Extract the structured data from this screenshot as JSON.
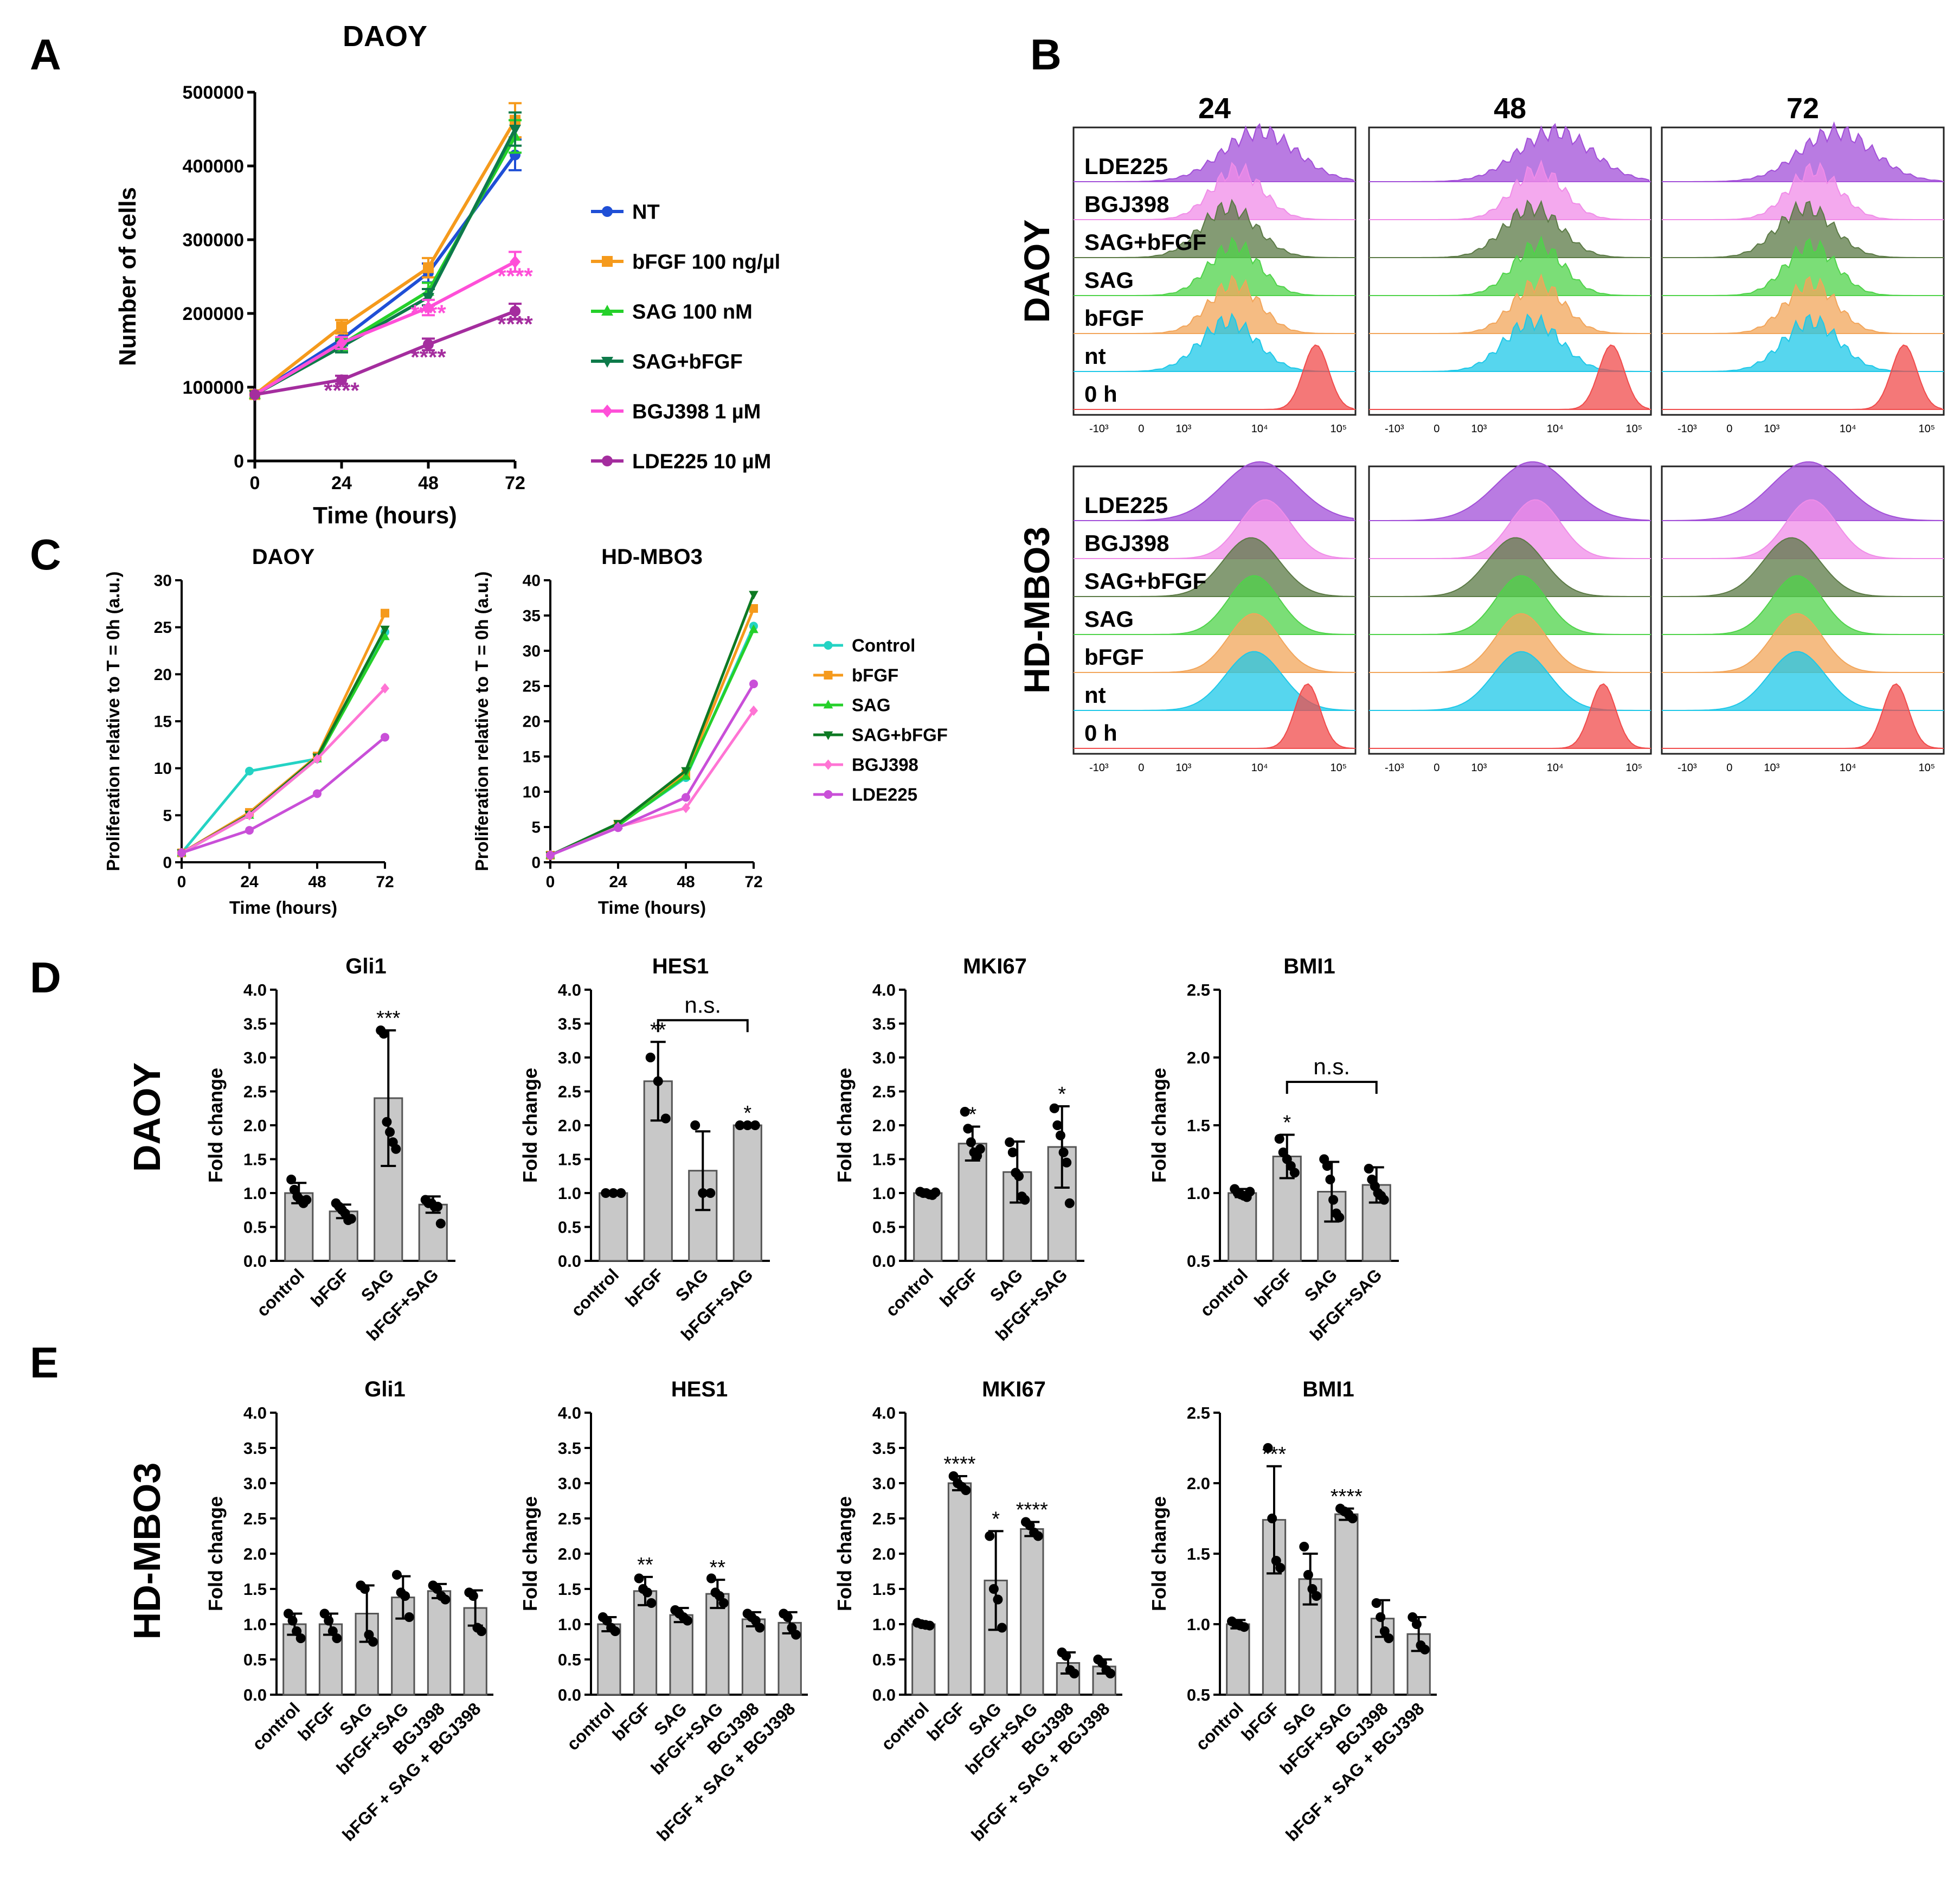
{
  "figure_labels": {
    "A": "A",
    "B": "B",
    "C": "C",
    "D": "D",
    "E": "E"
  },
  "chart_data": [
    {
      "id": "A",
      "type": "line",
      "title": "DAOY",
      "xlabel": "Time (hours)",
      "ylabel": "Number of cells",
      "x": [
        0,
        24,
        48,
        72
      ],
      "xticks": [
        "0",
        "24",
        "48",
        "72"
      ],
      "ylim": [
        0,
        500000
      ],
      "yticks": [
        "0",
        "100000",
        "200000",
        "300000",
        "400000",
        "500000"
      ],
      "series": [
        {
          "name": "NT",
          "color": "#1f4fd6",
          "marker": "circle",
          "values": [
            90000,
            165000,
            255000,
            415000
          ]
        },
        {
          "name": "bFGF 100 ng/µl",
          "color": "#f59a1c",
          "marker": "square",
          "values": [
            90000,
            182000,
            262000,
            462000
          ]
        },
        {
          "name": "SAG 100 nM",
          "color": "#25d02a",
          "marker": "triangle",
          "values": [
            90000,
            158000,
            230000,
            440000
          ]
        },
        {
          "name": "SAG+bFGF",
          "color": "#0d7a4a",
          "marker": "triangle-down",
          "values": [
            90000,
            155000,
            222000,
            450000
          ]
        },
        {
          "name": "BGJ398 1 µM",
          "color": "#ff4fd8",
          "marker": "diamond",
          "values": [
            90000,
            160000,
            208000,
            270000
          ]
        },
        {
          "name": "LDE225 10 µM",
          "color": "#a42d9e",
          "marker": "circle",
          "values": [
            90000,
            110000,
            158000,
            203000
          ]
        }
      ],
      "annotations": [
        {
          "text": "****",
          "x": 24,
          "y": 85000,
          "color": "#a42d9e"
        },
        {
          "text": "****",
          "x": 48,
          "y": 190000,
          "color": "#ff4fd8"
        },
        {
          "text": "****",
          "x": 48,
          "y": 130000,
          "color": "#a42d9e"
        },
        {
          "text": "****",
          "x": 72,
          "y": 240000,
          "color": "#ff4fd8"
        },
        {
          "text": "****",
          "x": 72,
          "y": 175000,
          "color": "#a42d9e"
        }
      ]
    },
    {
      "id": "B",
      "type": "histogram-stack",
      "columns": [
        "24",
        "48",
        "72"
      ],
      "row_groups": [
        {
          "name": "DAOY",
          "labels": [
            "LDE225",
            "BGJ398",
            "SAG+bFGF",
            "SAG",
            "bFGF",
            "nt",
            "0 h"
          ]
        },
        {
          "name": "HD-MBO3",
          "labels": [
            "LDE225",
            "BGJ398",
            "SAG+bFGF",
            "SAG",
            "bFGF",
            "nt",
            "0 h"
          ]
        }
      ],
      "layer_colors": [
        "#a24fd8",
        "#f08ce8",
        "#5b7a45",
        "#4fd34a",
        "#f2a55a",
        "#1ec8e8",
        "#f04b4b"
      ],
      "xtick_labels": [
        "-10³",
        "0",
        "10³",
        "10⁴",
        "10⁵"
      ]
    },
    {
      "id": "C1",
      "type": "line",
      "title": "DAOY",
      "xlabel": "Time (hours)",
      "ylabel": "Proliferation relative to T = 0h (a.u.)",
      "x": [
        0,
        24,
        48,
        72
      ],
      "xticks": [
        "0",
        "24",
        "48",
        "72"
      ],
      "ylim": [
        0,
        30
      ],
      "yticks": [
        "0",
        "5",
        "10",
        "15",
        "20",
        "25",
        "30"
      ],
      "series": [
        {
          "name": "Control",
          "color": "#24d3c4",
          "marker": "circle",
          "values": [
            1,
            9.7,
            11,
            24.5
          ]
        },
        {
          "name": "bFGF",
          "color": "#f59a1c",
          "marker": "square",
          "values": [
            1,
            5.3,
            11.3,
            26.5
          ]
        },
        {
          "name": "SAG",
          "color": "#25d02a",
          "marker": "triangle",
          "values": [
            1,
            5,
            11,
            24
          ]
        },
        {
          "name": "SAG+bFGF",
          "color": "#0d7a23",
          "marker": "triangle-down",
          "values": [
            1,
            5.1,
            11.2,
            24.8
          ]
        },
        {
          "name": "BGJ398",
          "color": "#ff74d4",
          "marker": "diamond",
          "values": [
            1,
            5,
            11,
            18.5
          ]
        },
        {
          "name": "LDE225",
          "color": "#c94fd8",
          "marker": "circle",
          "values": [
            1,
            3.4,
            7.3,
            13.3
          ]
        }
      ]
    },
    {
      "id": "C2",
      "type": "line",
      "title": "HD-MBO3",
      "xlabel": "Time (hours)",
      "ylabel": "Proliferation relative to T = 0h (a.u.)",
      "x": [
        0,
        24,
        48,
        72
      ],
      "xticks": [
        "0",
        "24",
        "48",
        "72"
      ],
      "ylim": [
        0,
        40
      ],
      "yticks": [
        "0",
        "5",
        "10",
        "15",
        "20",
        "25",
        "30",
        "35",
        "40"
      ],
      "series": [
        {
          "name": "Control",
          "color": "#24d3c4",
          "marker": "circle",
          "values": [
            1,
            5.3,
            12,
            33.5
          ]
        },
        {
          "name": "bFGF",
          "color": "#f59a1c",
          "marker": "square",
          "values": [
            1,
            5.4,
            12.5,
            36
          ]
        },
        {
          "name": "SAG",
          "color": "#25d02a",
          "marker": "triangle",
          "values": [
            1,
            5.2,
            12.2,
            33
          ]
        },
        {
          "name": "SAG+bFGF",
          "color": "#0d7a23",
          "marker": "triangle-down",
          "values": [
            1,
            5.5,
            13,
            38
          ]
        },
        {
          "name": "BGJ398",
          "color": "#ff74d4",
          "marker": "diamond",
          "values": [
            1,
            5,
            7.7,
            21.5
          ]
        },
        {
          "name": "LDE225",
          "color": "#c94fd8",
          "marker": "circle",
          "values": [
            1,
            4.9,
            9.2,
            25.3
          ]
        }
      ]
    },
    {
      "id": "D1",
      "type": "bar",
      "title": "Gli1",
      "ylabel": "Fold change",
      "categories": [
        "control",
        "bFGF",
        "SAG",
        "bFGF+SAG"
      ],
      "values": [
        1.0,
        0.73,
        2.4,
        0.83
      ],
      "errors": [
        0.15,
        0.1,
        1.0,
        0.12
      ],
      "ylim": [
        0,
        4
      ],
      "yticks": [
        "0.0",
        "0.5",
        "1.0",
        "1.5",
        "2.0",
        "2.5",
        "3.0",
        "3.5",
        "4.0"
      ],
      "points": [
        [
          1.2,
          1.05,
          0.95,
          0.9,
          0.85,
          0.9
        ],
        [
          0.85,
          0.8,
          0.75,
          0.7,
          0.6,
          0.62
        ],
        [
          3.4,
          3.35,
          2.05,
          1.9,
          1.75,
          1.65
        ],
        [
          0.9,
          0.85,
          0.85,
          0.8,
          0.8,
          0.55
        ]
      ],
      "sig": [
        null,
        null,
        "***",
        null
      ],
      "bracket": null
    },
    {
      "id": "D2",
      "type": "bar",
      "title": "HES1",
      "ylabel": "Fold change",
      "categories": [
        "control",
        "bFGF",
        "SAG",
        "bFGF+SAG"
      ],
      "values": [
        1.0,
        2.65,
        1.33,
        2.0
      ],
      "errors": [
        0.0,
        0.58,
        0.58,
        0.0
      ],
      "ylim": [
        0,
        4
      ],
      "yticks": [
        "0.0",
        "0.5",
        "1.0",
        "1.5",
        "2.0",
        "2.5",
        "3.0",
        "3.5",
        "4.0"
      ],
      "points": [
        [
          1.0,
          1.0,
          1.0
        ],
        [
          3.0,
          2.65,
          2.1
        ],
        [
          2.0,
          1.0,
          1.0
        ],
        [
          2.0,
          2.0,
          2.0
        ]
      ],
      "sig": [
        null,
        "**",
        null,
        "*"
      ],
      "bracket": {
        "from": 1,
        "to": 3,
        "label": "n.s.",
        "y": 3.55
      }
    },
    {
      "id": "D3",
      "type": "bar",
      "title": "MKI67",
      "ylabel": "Fold change",
      "categories": [
        "control",
        "bFGF",
        "SAG",
        "bFGF+SAG"
      ],
      "values": [
        1.0,
        1.73,
        1.31,
        1.68
      ],
      "errors": [
        0.03,
        0.25,
        0.45,
        0.6
      ],
      "ylim": [
        0,
        4
      ],
      "yticks": [
        "0.0",
        "0.5",
        "1.0",
        "1.5",
        "2.0",
        "2.5",
        "3.0",
        "3.5",
        "4.0"
      ],
      "points": [
        [
          1.02,
          1.0,
          1.0,
          0.98,
          0.97,
          1.01
        ],
        [
          2.2,
          1.95,
          1.75,
          1.6,
          1.55,
          1.65
        ],
        [
          1.75,
          1.6,
          1.3,
          1.25,
          0.95,
          0.9
        ],
        [
          2.25,
          2.0,
          1.85,
          1.6,
          1.45,
          0.85
        ]
      ],
      "sig": [
        null,
        "*",
        null,
        "*"
      ],
      "bracket": null
    },
    {
      "id": "D4",
      "type": "bar",
      "title": "BMI1",
      "ylabel": "Fold change",
      "categories": [
        "control",
        "bFGF",
        "SAG",
        "bFGF+SAG"
      ],
      "values": [
        1.0,
        1.27,
        1.01,
        1.06
      ],
      "errors": [
        0.03,
        0.16,
        0.22,
        0.13
      ],
      "ylim": [
        0.5,
        2.5
      ],
      "yticks": [
        "0.5",
        "1.0",
        "1.5",
        "2.0",
        "2.5"
      ],
      "points": [
        [
          1.03,
          1.0,
          0.99,
          0.98,
          0.97,
          1.01
        ],
        [
          1.4,
          1.3,
          1.25,
          1.2,
          1.15
        ],
        [
          1.25,
          1.2,
          1.1,
          0.95,
          0.85,
          0.82
        ],
        [
          1.18,
          1.1,
          1.05,
          1.0,
          0.98,
          0.95
        ]
      ],
      "sig": [
        null,
        "*",
        null,
        null
      ],
      "bracket": {
        "from": 1,
        "to": 3,
        "label": "n.s.",
        "y": 1.82
      }
    },
    {
      "id": "E1",
      "type": "bar",
      "title": "Gli1",
      "ylabel": "Fold change",
      "categories": [
        "control",
        "bFGF",
        "SAG",
        "bFGF+SAG",
        "BGJ398",
        "bFGF + SAG + BGJ398"
      ],
      "values": [
        1.0,
        1.0,
        1.15,
        1.38,
        1.47,
        1.23
      ],
      "errors": [
        0.15,
        0.15,
        0.4,
        0.3,
        0.1,
        0.25
      ],
      "ylim": [
        0,
        4
      ],
      "yticks": [
        "0.0",
        "0.5",
        "1.0",
        "1.5",
        "2.0",
        "2.5",
        "3.0",
        "3.5",
        "4.0"
      ],
      "points": [
        [
          1.15,
          1.05,
          0.9,
          0.8
        ],
        [
          1.15,
          1.05,
          0.9,
          0.8
        ],
        [
          1.55,
          1.5,
          0.85,
          0.75
        ],
        [
          1.7,
          1.45,
          1.4,
          1.1
        ],
        [
          1.55,
          1.5,
          1.4,
          1.35
        ],
        [
          1.45,
          1.4,
          0.95,
          0.9
        ]
      ],
      "sig": [
        null,
        null,
        null,
        null,
        null,
        null
      ],
      "bracket": null
    },
    {
      "id": "E2",
      "type": "bar",
      "title": "HES1",
      "ylabel": "Fold change",
      "categories": [
        "control",
        "bFGF",
        "SAG",
        "bFGF+SAG",
        "BGJ398",
        "bFGF + SAG + BGJ398"
      ],
      "values": [
        1.0,
        1.47,
        1.13,
        1.43,
        1.07,
        1.02
      ],
      "errors": [
        0.1,
        0.2,
        0.1,
        0.2,
        0.1,
        0.15
      ],
      "ylim": [
        0,
        4
      ],
      "yticks": [
        "0.0",
        "0.5",
        "1.0",
        "1.5",
        "2.0",
        "2.5",
        "3.0",
        "3.5",
        "4.0"
      ],
      "points": [
        [
          1.1,
          1.05,
          0.95,
          0.9
        ],
        [
          1.65,
          1.5,
          1.45,
          1.3
        ],
        [
          1.2,
          1.15,
          1.1,
          1.05
        ],
        [
          1.65,
          1.45,
          1.4,
          1.3
        ],
        [
          1.15,
          1.1,
          1.05,
          0.95
        ],
        [
          1.15,
          1.1,
          0.95,
          0.85
        ]
      ],
      "sig": [
        null,
        "**",
        null,
        "**",
        null,
        null
      ],
      "bracket": null
    },
    {
      "id": "E3",
      "type": "bar",
      "title": "MKI67",
      "ylabel": "Fold change",
      "categories": [
        "control",
        "bFGF",
        "SAG",
        "bFGF+SAG",
        "BGJ398",
        "bFGF + SAG + BGJ398"
      ],
      "values": [
        1.0,
        3.0,
        1.62,
        2.35,
        0.45,
        0.4
      ],
      "errors": [
        0.03,
        0.1,
        0.7,
        0.1,
        0.15,
        0.1
      ],
      "ylim": [
        0,
        4
      ],
      "yticks": [
        "0.0",
        "0.5",
        "1.0",
        "1.5",
        "2.0",
        "2.5",
        "3.0",
        "3.5",
        "4.0"
      ],
      "points": [
        [
          1.02,
          1.0,
          0.99,
          0.98
        ],
        [
          3.1,
          3.0,
          2.95,
          2.9
        ],
        [
          2.25,
          1.5,
          1.35,
          0.95
        ],
        [
          2.45,
          2.4,
          2.3,
          2.25
        ],
        [
          0.6,
          0.55,
          0.35,
          0.3
        ],
        [
          0.5,
          0.45,
          0.35,
          0.3
        ]
      ],
      "sig": [
        null,
        "****",
        "*",
        "****",
        null,
        null
      ],
      "bracket": null
    },
    {
      "id": "E4",
      "type": "bar",
      "title": "BMI1",
      "ylabel": "Fold change",
      "categories": [
        "control",
        "bFGF",
        "SAG",
        "bFGF+SAG",
        "BGJ398",
        "bFGF + SAG + BGJ398"
      ],
      "values": [
        1.0,
        1.74,
        1.32,
        1.78,
        1.04,
        0.93
      ],
      "errors": [
        0.03,
        0.38,
        0.18,
        0.04,
        0.13,
        0.12
      ],
      "ylim": [
        0.5,
        2.5
      ],
      "yticks": [
        "0.5",
        "1.0",
        "1.5",
        "2.0",
        "2.5"
      ],
      "points": [
        [
          1.02,
          1.0,
          0.99,
          0.98
        ],
        [
          2.25,
          1.75,
          1.45,
          1.4
        ],
        [
          1.55,
          1.35,
          1.25,
          1.2
        ],
        [
          1.82,
          1.8,
          1.78,
          1.75
        ],
        [
          1.15,
          1.05,
          0.95,
          0.9
        ],
        [
          1.05,
          1.0,
          0.85,
          0.82
        ]
      ],
      "sig": [
        null,
        "***",
        null,
        "****",
        null,
        null
      ],
      "bracket": null
    }
  ],
  "side_labels": {
    "D": "DAOY",
    "E": "HD-MBO3"
  }
}
